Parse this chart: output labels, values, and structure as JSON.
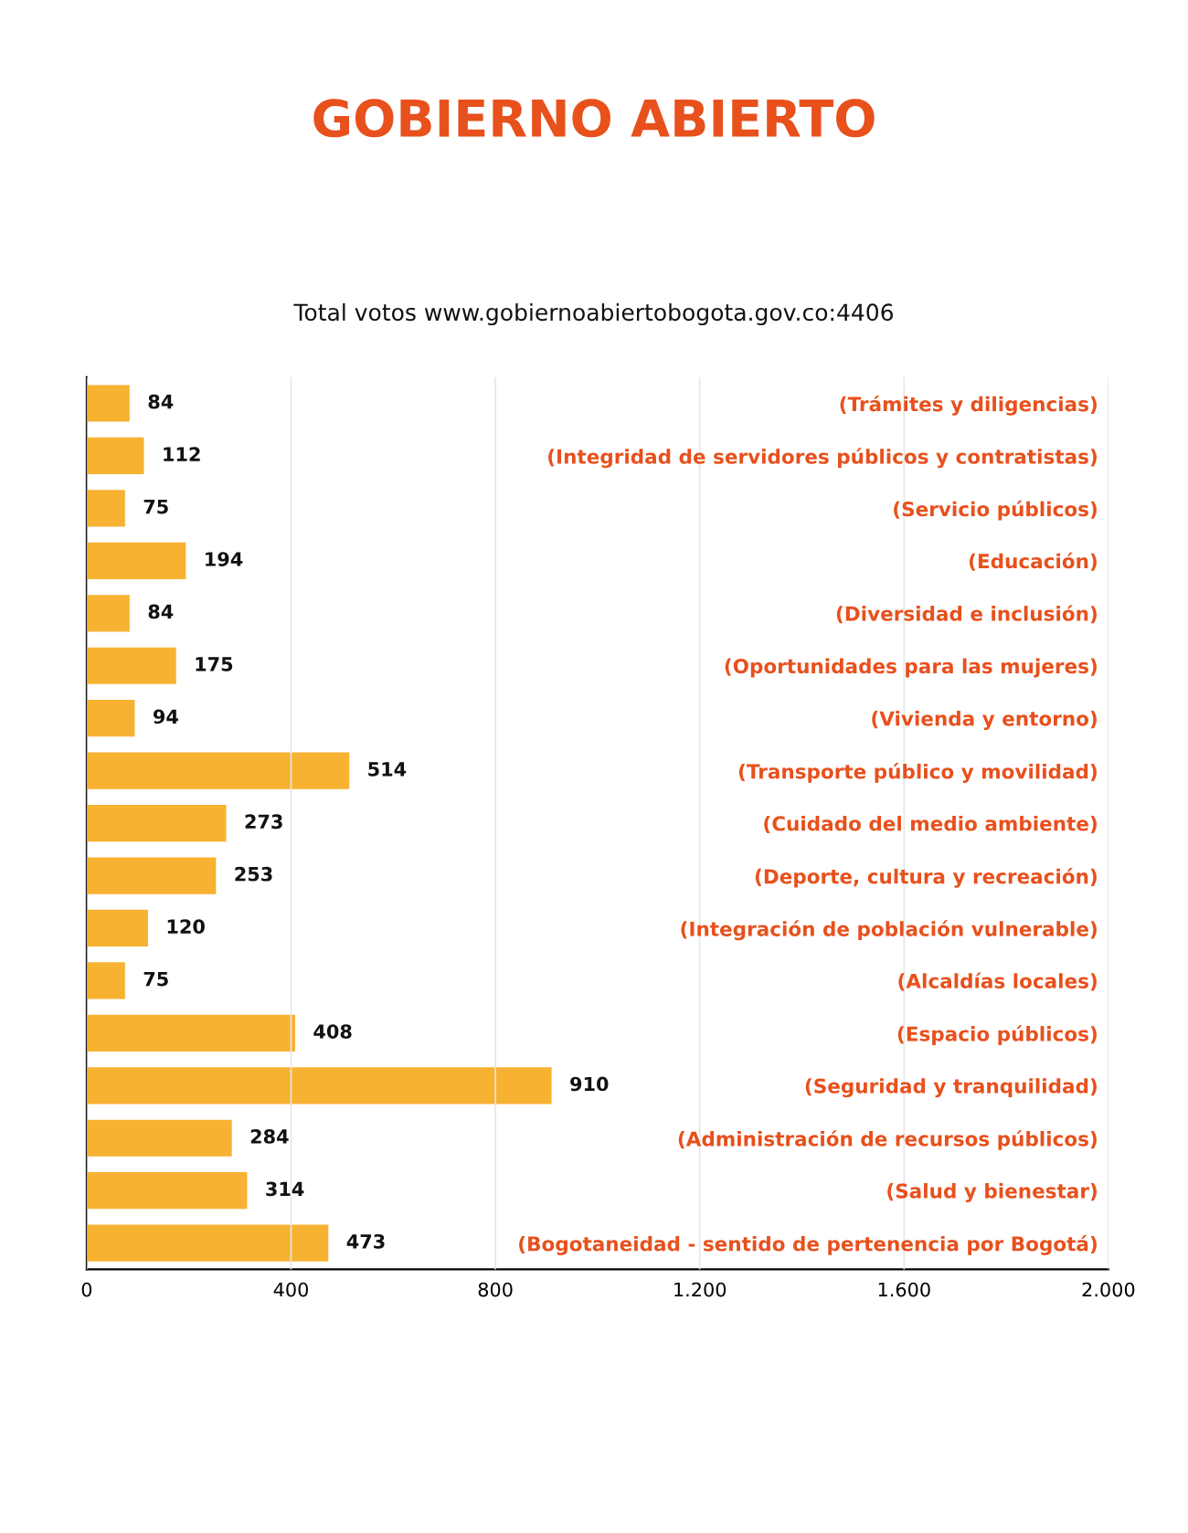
{
  "chart_data": {
    "type": "bar",
    "orientation": "horizontal",
    "title": "GOBIERNO ABIERTO",
    "subtitle": "Total votos www.gobiernoabiertobogota.gov.co:4406",
    "categories": [
      "(Trámites y diligencias)",
      "(Integridad de servidores públicos y contratistas)",
      "(Servicio públicos)",
      "(Educación)",
      "(Diversidad e inclusión)",
      "(Oportunidades para las mujeres)",
      "(Vivienda y entorno)",
      "(Transporte público y movilidad)",
      "(Cuidado del medio ambiente)",
      "(Deporte, cultura y recreación)",
      "(Integración de población vulnerable)",
      "(Alcaldías locales)",
      "(Espacio públicos)",
      "(Seguridad y tranquilidad)",
      "(Administración de recursos públicos)",
      "(Salud y bienestar)",
      "(Bogotaneidad - sentido de pertenencia por Bogotá)"
    ],
    "values": [
      84,
      112,
      75,
      194,
      84,
      175,
      94,
      514,
      273,
      253,
      120,
      75,
      408,
      910,
      284,
      314,
      473
    ],
    "color": "#f7b232",
    "data_labels": true,
    "xlim": [
      0,
      2000
    ],
    "xticks": [
      0,
      {
        "value": 400,
        "label": "400"
      },
      {
        "value": 800,
        "label": "800"
      },
      {
        "value": 1200,
        "label": "1.200"
      },
      {
        "value": 1600,
        "label": "1.600"
      },
      {
        "value": 2000,
        "label": "2.000"
      }
    ],
    "grid": "x",
    "legend": false
  }
}
